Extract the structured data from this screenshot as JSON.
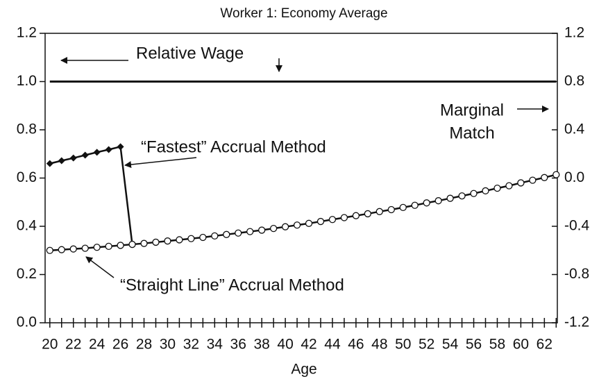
{
  "chart_data": {
    "type": "line",
    "title": "Worker 1: Economy Average",
    "xlabel": "Age",
    "annotations": [
      "Relative Wage",
      "Marginal",
      "Match",
      "“Fastest” Accrual Method",
      "“Straight Line” Accrual Method"
    ],
    "xlim": [
      19.6,
      63.1
    ],
    "xticks": [
      20,
      22,
      24,
      26,
      28,
      30,
      32,
      34,
      36,
      38,
      40,
      42,
      44,
      46,
      48,
      50,
      52,
      54,
      56,
      58,
      60,
      62
    ],
    "xticks_minor": [
      20,
      21,
      22,
      23,
      24,
      25,
      26,
      27,
      28,
      29,
      30,
      31,
      32,
      33,
      34,
      35,
      36,
      37,
      38,
      39,
      40,
      41,
      42,
      43,
      44,
      45,
      46,
      47,
      48,
      49,
      50,
      51,
      52,
      53,
      54,
      55,
      56,
      57,
      58,
      59,
      60,
      61,
      62,
      63
    ],
    "ylim": [
      0,
      1.2
    ],
    "yticks": [
      {
        "value": 0,
        "label": "0.0"
      },
      0.2,
      0.4,
      0.6,
      0.8,
      {
        "value": 1,
        "label": "1.0"
      },
      1.2
    ],
    "y2lim": [
      -1.2,
      1.2
    ],
    "y2ticks": [
      -1.2,
      -0.8,
      -0.4,
      {
        "value": 0,
        "label": "0.0"
      },
      0.4,
      0.8,
      1.2
    ],
    "series": [
      {
        "name": "Relative Wage",
        "color": "#111111",
        "marker": "none",
        "x": [
          20,
          63
        ],
        "values": [
          1,
          1
        ]
      },
      {
        "name": "“Fastest” Accrual Method",
        "color": "#111111",
        "marker": "diamond",
        "x": [
          20,
          21,
          22,
          23,
          24,
          25,
          26,
          27
        ],
        "values": [
          0.66,
          0.672,
          0.683,
          0.695,
          0.707,
          0.718,
          0.73,
          0.325
        ]
      },
      {
        "name": "“Straight Line” Accrual Method",
        "color": "#111111",
        "marker": "circle",
        "x": [
          20,
          21,
          22,
          23,
          24,
          25,
          26,
          27,
          28,
          29,
          30,
          31,
          32,
          33,
          34,
          35,
          36,
          37,
          38,
          39,
          40,
          41,
          42,
          43,
          44,
          45,
          46,
          47,
          48,
          49,
          50,
          51,
          52,
          53,
          54,
          55,
          56,
          57,
          58,
          59,
          60,
          61,
          62,
          63
        ],
        "values": [
          0.3,
          0.303,
          0.306,
          0.309,
          0.313,
          0.317,
          0.321,
          0.325,
          0.329,
          0.334,
          0.339,
          0.344,
          0.349,
          0.354,
          0.36,
          0.366,
          0.372,
          0.378,
          0.384,
          0.391,
          0.398,
          0.405,
          0.412,
          0.42,
          0.428,
          0.436,
          0.444,
          0.452,
          0.461,
          0.469,
          0.478,
          0.487,
          0.497,
          0.506,
          0.516,
          0.526,
          0.536,
          0.547,
          0.558,
          0.568,
          0.58,
          0.591,
          0.602,
          0.614
        ]
      }
    ]
  }
}
